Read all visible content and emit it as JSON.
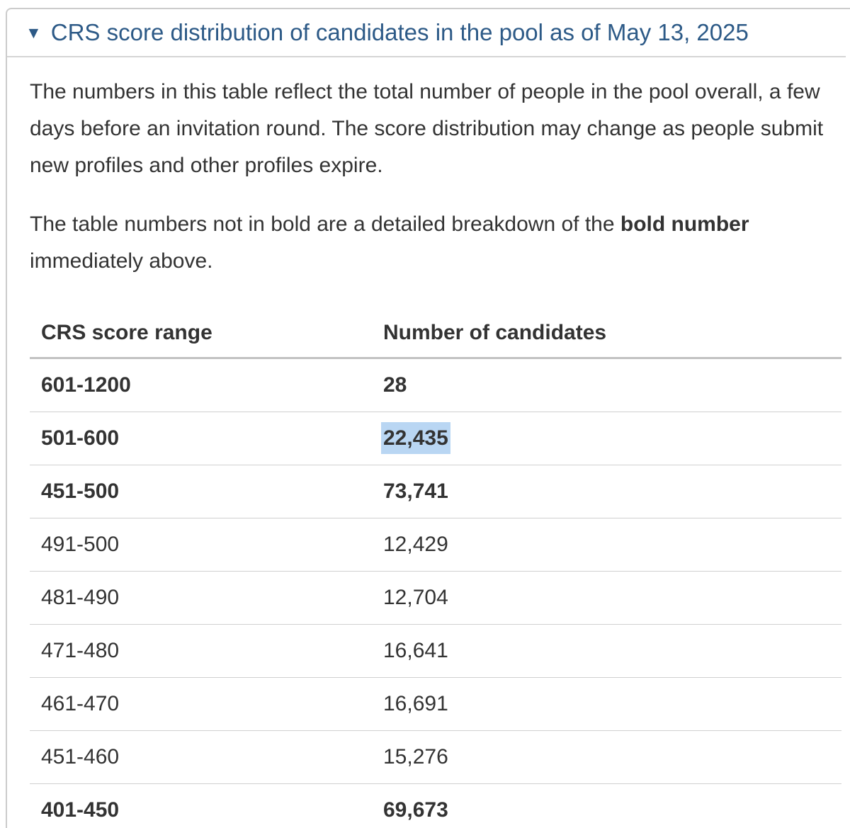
{
  "summary": {
    "marker": "▼",
    "title": "CRS score distribution of candidates in the pool as of May 13, 2025"
  },
  "intro": {
    "paragraph1": "The numbers in this table reflect the total number of people in the pool overall, a few days before an invitation round. The score distribution may change as people submit new profiles and other profiles expire.",
    "paragraph2_prefix": "The table numbers not in bold are a detailed breakdown of the ",
    "paragraph2_bold": "bold number",
    "paragraph2_suffix": " immediately above."
  },
  "table": {
    "headers": {
      "score_range": "CRS score range",
      "candidates": "Number of candidates"
    },
    "rows": [
      {
        "range": "601-1200",
        "count": "28"
      },
      {
        "range": "501-600",
        "count": "22,435"
      },
      {
        "range": "451-500",
        "count": "73,741"
      },
      {
        "range": "491-500",
        "count": "12,429"
      },
      {
        "range": "481-490",
        "count": "12,704"
      },
      {
        "range": "471-480",
        "count": "16,641"
      },
      {
        "range": "461-470",
        "count": "16,691"
      },
      {
        "range": "451-460",
        "count": "15,276"
      },
      {
        "range": "401-450",
        "count": "69,673"
      }
    ]
  },
  "colors": {
    "summary_text": "#2d5a87",
    "body_text": "#333333",
    "panel_border": "#cccccc",
    "summary_rule": "#d5d5d5",
    "header_rule": "#c2c2c2",
    "row_rule": "#d0d0d0",
    "selection": "#b9d6f3"
  }
}
